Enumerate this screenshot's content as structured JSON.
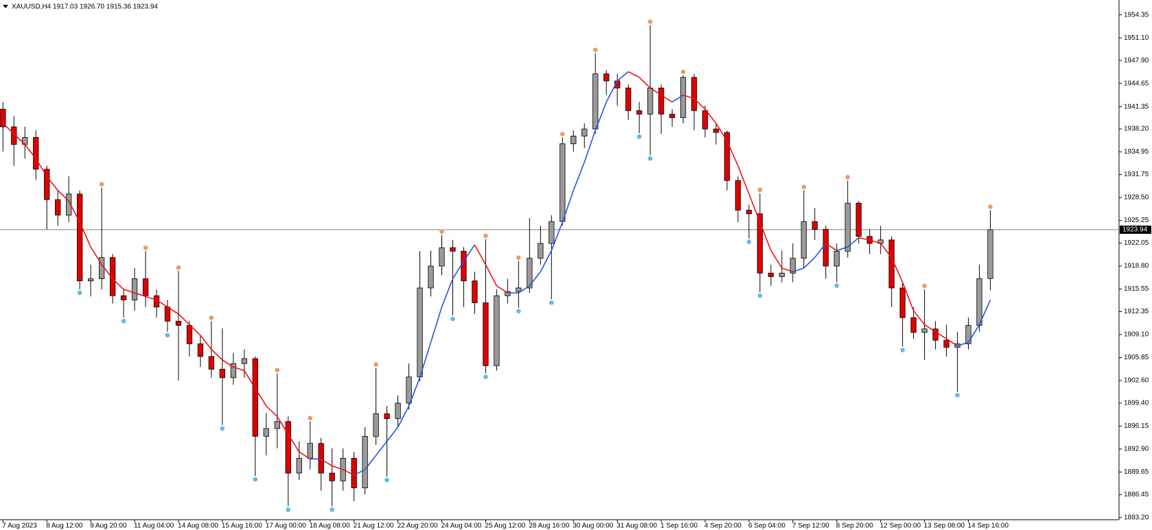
{
  "chart_data": {
    "type": "candlestick",
    "title": "XAUUSD,H4  1917.03 1926.70 1915.36 1923.94",
    "categories": [
      "7 Aug 2023",
      null,
      null,
      null,
      "8 Aug 12:00",
      null,
      null,
      null,
      "9 Aug 20:00",
      null,
      null,
      null,
      "11 Aug 04:00",
      null,
      null,
      null,
      "14 Aug 08:00",
      null,
      null,
      null,
      "15 Aug 16:00",
      null,
      null,
      null,
      "17 Aug 00:00",
      null,
      null,
      null,
      "18 Aug 08:00",
      null,
      null,
      null,
      "21 Aug 12:00",
      null,
      null,
      null,
      "22 Aug 20:00",
      null,
      null,
      null,
      "24 Aug 04:00",
      null,
      null,
      null,
      "25 Aug 12:00",
      null,
      null,
      null,
      "28 Aug 16:00",
      null,
      null,
      null,
      "30 Aug 00:00",
      null,
      null,
      null,
      "31 Aug 08:00",
      null,
      null,
      null,
      "1 Sep 16:00",
      null,
      null,
      null,
      "4 Sep 20:00",
      null,
      null,
      null,
      "6 Sep 04:00",
      null,
      null,
      null,
      "7 Sep 12:00",
      null,
      null,
      null,
      "8 Sep 20:00",
      null,
      null,
      null,
      "12 Sep 00:00",
      null,
      null,
      null,
      "13 Sep 08:00",
      null,
      null,
      null,
      "14 Sep 16:00",
      null,
      null
    ],
    "open": [
      1941,
      1938.5,
      1936,
      1937,
      1932.5,
      1928.2,
      1926,
      1929,
      1916.7,
      1917,
      1920,
      1914.6,
      1914,
      1917,
      1914.6,
      1913,
      1911,
      1910.4,
      1907.8,
      1906,
      1904.2,
      1903,
      1905,
      1905.7,
      1894.7,
      1895.8,
      1896.8,
      1889.5,
      1891.6,
      1893.7,
      1889.5,
      1888.4,
      1891.6,
      1887.4,
      1894.7,
      1897.9,
      1897.2,
      1899.4,
      1903.1,
      1915.7,
      1918.8,
      1921.4,
      1920.9,
      1916.7,
      1913.6,
      1904.7,
      1914.6,
      1915.2,
      1915.7,
      1919.9,
      1922,
      1925.1,
      1936.1,
      1937.2,
      1938.2,
      1946,
      1945,
      1944,
      1940.8,
      1940.3,
      1944,
      1940.3,
      1939.8,
      1945.5,
      1940.8,
      1938.2,
      1937.7,
      1930.9,
      1926.7,
      1926.2,
      1917.8,
      1917.3,
      1917.8,
      1919.9,
      1925.1,
      1924,
      1918.8,
      1920.9,
      1927.7,
      1923,
      1922,
      1922.5,
      1915.7,
      1911.5,
      1909.4,
      1909.9,
      1908.3,
      1907.3,
      1907.8,
      1910.4,
      1917.03
    ],
    "high": [
      1942,
      1940,
      1938.5,
      1938,
      1933,
      1929.5,
      1931.5,
      1929.5,
      1919,
      1929.9,
      1920.5,
      1915.5,
      1918.5,
      1920.9,
      1915.5,
      1914,
      1918.1,
      1911,
      1909,
      1911,
      1910,
      1906.5,
      1907,
      1906,
      1898,
      1903.6,
      1897.5,
      1894,
      1896.8,
      1894.5,
      1893,
      1893,
      1892.5,
      1896,
      1904.4,
      1899,
      1900.5,
      1905,
      1920.9,
      1921,
      1923.2,
      1922.5,
      1921.5,
      1918,
      1922.6,
      1915.5,
      1917,
      1919.5,
      1925.6,
      1924.5,
      1926,
      1937,
      1938,
      1939,
      1948.9,
      1946.5,
      1946,
      1944.5,
      1942,
      1952.9,
      1944.5,
      1941,
      1945.8,
      1946,
      1941.5,
      1939,
      1938,
      1931.5,
      1927.5,
      1929.1,
      1919,
      1921,
      1922,
      1929.5,
      1927,
      1924.5,
      1922,
      1930.9,
      1928,
      1924,
      1924.5,
      1923,
      1916.5,
      1913,
      1915.5,
      1911,
      1910.5,
      1909.5,
      1911.5,
      1919,
      1926.7
    ],
    "low": [
      1935,
      1933,
      1934,
      1931,
      1924,
      1924.5,
      1925,
      1915.5,
      1914.5,
      1915.5,
      1913.5,
      1911.5,
      1912.5,
      1913,
      1911.5,
      1909.5,
      1902.6,
      1906,
      1904.5,
      1903,
      1896.3,
      1902,
      1903,
      1889.1,
      1892,
      1893,
      1884.8,
      1888.5,
      1890,
      1887,
      1884.8,
      1887,
      1885.5,
      1886.5,
      1893.5,
      1889,
      1896,
      1898.5,
      1902.5,
      1914.5,
      1917.5,
      1911.8,
      1913,
      1912,
      1903.6,
      1904,
      1913.5,
      1912.9,
      1915,
      1919,
      1914.1,
      1924.5,
      1935,
      1935.5,
      1937.5,
      1943,
      1941.5,
      1939.5,
      1937.6,
      1934.5,
      1937.5,
      1938.5,
      1939,
      1938,
      1937,
      1936,
      1929.5,
      1925,
      1922.7,
      1915.1,
      1916,
      1916.5,
      1916.5,
      1918.5,
      1922.5,
      1917,
      1916.5,
      1920,
      1922,
      1920.5,
      1920.5,
      1913,
      1907.4,
      1908.5,
      1905.5,
      1907,
      1906,
      1901,
      1907,
      1909.5,
      1915.36
    ],
    "close": [
      1938.5,
      1936,
      1937,
      1932.5,
      1928.2,
      1926,
      1929,
      1916.7,
      1917,
      1920,
      1914.6,
      1914,
      1917,
      1914.6,
      1913,
      1911,
      1910.4,
      1907.8,
      1906,
      1904.2,
      1903,
      1905,
      1905.7,
      1894.7,
      1895.8,
      1896.8,
      1889.5,
      1891.6,
      1893.7,
      1889.5,
      1888.4,
      1891.6,
      1887.4,
      1894.7,
      1897.9,
      1897.2,
      1899.4,
      1903.1,
      1915.7,
      1918.8,
      1921.4,
      1920.9,
      1916.7,
      1913.6,
      1904.7,
      1914.6,
      1915.2,
      1915.7,
      1919.9,
      1922,
      1925.1,
      1936.1,
      1937.2,
      1938.2,
      1946,
      1945,
      1944,
      1940.8,
      1940.3,
      1944,
      1940.3,
      1939.8,
      1945.5,
      1940.8,
      1938.2,
      1937.7,
      1930.9,
      1926.7,
      1926.2,
      1917.8,
      1917.3,
      1917.8,
      1919.9,
      1925.1,
      1924,
      1918.8,
      1920.9,
      1927.7,
      1923,
      1922,
      1922.5,
      1915.7,
      1911.5,
      1909.4,
      1909.9,
      1908.3,
      1907.3,
      1907.8,
      1910.4,
      1917.03,
      1923.94
    ],
    "up_color": "#9a9a9a",
    "down_color": "#e00000",
    "wick_color": "#000000",
    "ma": {
      "values": [
        1939,
        1937.5,
        1936,
        1934,
        1931.5,
        1929.5,
        1928,
        1925,
        1921.5,
        1919,
        1917,
        1915.5,
        1915,
        1914.5,
        1914,
        1913,
        1912,
        1910.5,
        1909,
        1907,
        1905.5,
        1904.5,
        1904,
        1901.5,
        1899,
        1897.5,
        1895,
        1892.5,
        1891.5,
        1891.5,
        1890.5,
        1890,
        1889.2,
        1890,
        1892,
        1894,
        1896,
        1899,
        1903,
        1908,
        1913,
        1917,
        1919.5,
        1921.8,
        1919,
        1916,
        1915,
        1915,
        1916,
        1918,
        1921,
        1925,
        1929.5,
        1933.5,
        1938,
        1942,
        1945,
        1946.3,
        1945.5,
        1944,
        1943,
        1942,
        1943,
        1942.5,
        1941,
        1939,
        1936.5,
        1933,
        1929,
        1925,
        1921,
        1918.5,
        1918,
        1918.5,
        1920,
        1922,
        1921,
        1921.5,
        1922.8,
        1922.5,
        1922,
        1920,
        1916.5,
        1912.5,
        1910.5,
        1909.5,
        1908.5,
        1907.5,
        1908,
        1910.5,
        1914
      ],
      "up_color": "#2255dd",
      "down_color": "#ee1111"
    },
    "fractal_high": {
      "color": "#f5956a",
      "values": [
        null,
        null,
        null,
        null,
        null,
        null,
        null,
        null,
        null,
        1929.9,
        null,
        null,
        null,
        1920.9,
        null,
        null,
        1918.1,
        null,
        null,
        1911,
        null,
        null,
        null,
        null,
        null,
        1903.6,
        null,
        null,
        1896.8,
        null,
        null,
        null,
        null,
        null,
        1904.4,
        null,
        null,
        null,
        null,
        null,
        1923.2,
        null,
        null,
        null,
        1922.6,
        null,
        null,
        1919.5,
        null,
        null,
        null,
        1937,
        null,
        null,
        1948.9,
        null,
        null,
        null,
        null,
        1952.9,
        null,
        null,
        1945.8,
        null,
        null,
        null,
        null,
        null,
        null,
        1929.1,
        null,
        null,
        null,
        1929.5,
        null,
        null,
        null,
        1930.9,
        null,
        null,
        null,
        null,
        null,
        null,
        1915.5,
        null,
        null,
        null,
        null,
        null,
        1926.7
      ]
    },
    "fractal_low": {
      "color": "#5fbde6",
      "values": [
        null,
        null,
        null,
        null,
        null,
        null,
        null,
        1915.5,
        null,
        null,
        null,
        1911.5,
        null,
        null,
        null,
        1909.5,
        null,
        null,
        null,
        null,
        1896.3,
        null,
        null,
        1889.1,
        null,
        null,
        1884.8,
        null,
        null,
        null,
        1884.8,
        null,
        null,
        null,
        null,
        1889,
        null,
        null,
        null,
        null,
        null,
        1911.8,
        null,
        null,
        1903.6,
        null,
        null,
        1912.9,
        null,
        null,
        1914.1,
        null,
        null,
        null,
        null,
        null,
        null,
        null,
        1937.6,
        1934.5,
        null,
        null,
        null,
        null,
        null,
        null,
        null,
        null,
        1922.7,
        1915.1,
        null,
        null,
        null,
        null,
        null,
        null,
        1916.5,
        null,
        null,
        null,
        null,
        null,
        1907.4,
        null,
        null,
        null,
        null,
        1901,
        null,
        null,
        null
      ]
    },
    "last_price": 1923.94,
    "last_price_color": "#6b7f96",
    "ylim": [
      1882.9,
      1956.45
    ],
    "yticks": [
      1954.35,
      {
        "value": 1951.1,
        "label": "1951.10"
      },
      {
        "value": 1947.9,
        "label": "1947.90"
      },
      1944.65,
      1941.35,
      {
        "value": 1938.2,
        "label": "1938.20"
      },
      1934.95,
      1931.75,
      {
        "value": 1928.5,
        "label": "1928.50"
      },
      1925.25,
      1922.05,
      {
        "value": 1918.8,
        "label": "1918.80"
      },
      1915.55,
      1912.35,
      {
        "value": 1909.1,
        "label": "1909.10"
      },
      1905.85,
      {
        "value": 1902.6,
        "label": "1902.60"
      },
      {
        "value": 1899.4,
        "label": "1899.40"
      },
      1896.15,
      {
        "value": 1892.9,
        "label": "1892.90"
      },
      1889.65,
      1886.45,
      {
        "value": 1883.2,
        "label": "1883.20"
      }
    ],
    "grid": false
  }
}
